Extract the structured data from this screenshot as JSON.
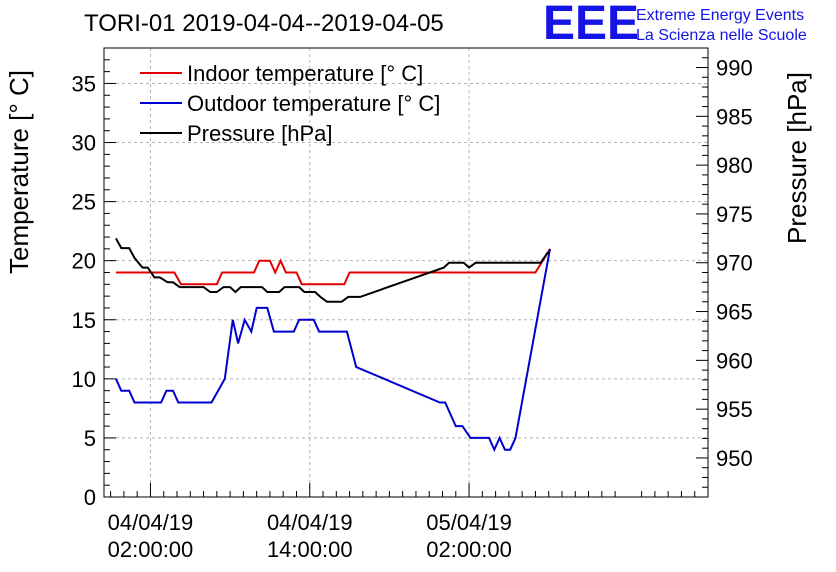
{
  "chart_data": {
    "type": "line",
    "title": "TORI-01 2019-04-04--2019-04-05",
    "branding": {
      "logo": "EEE",
      "line1": "Extreme Energy Events",
      "line2": "La Scienza nelle Scuole",
      "color": "#1414e6"
    },
    "ylabel_left": "Temperature [° C]",
    "ylabel_right": "Pressure [hPa]",
    "ylim_left": [
      0,
      38
    ],
    "ylim_right": [
      946,
      992
    ],
    "x_range_hours": [
      -3.5,
      42
    ],
    "yticks_left": [
      "0",
      "5",
      "10",
      "15",
      "20",
      "25",
      "30",
      "35"
    ],
    "yticks_right": [
      "950",
      "955",
      "960",
      "965",
      "970",
      "975",
      "980",
      "985",
      "990"
    ],
    "xticks": [
      {
        "hour": 0,
        "date": "04/04/19",
        "time": "02:00:00"
      },
      {
        "hour": 12,
        "date": "04/04/19",
        "time": "14:00:00"
      },
      {
        "hour": 24,
        "date": "05/04/19",
        "time": "02:00:00"
      }
    ],
    "legend_position": "top-left",
    "grid": true,
    "series": [
      {
        "name": "Indoor temperature [° C]",
        "axis": "left",
        "color": "#e00000",
        "x": [
          -2.6,
          1.8,
          2.3,
          5.0,
          5.4,
          7.8,
          8.2,
          9.0,
          9.4,
          9.8,
          10.2,
          11.0,
          11.4,
          14.6,
          15.0,
          29.0,
          30.1
        ],
        "y": [
          19,
          19,
          18,
          18,
          19,
          19,
          20,
          20,
          19,
          20,
          19,
          19,
          18,
          18,
          19,
          19,
          21
        ]
      },
      {
        "name": "Outdoor temperature [° C]",
        "axis": "left",
        "color": "#0000d0",
        "x": [
          -2.6,
          -2.2,
          -1.6,
          -1.2,
          0.8,
          1.2,
          1.7,
          2.1,
          4.6,
          5.6,
          6.2,
          6.6,
          7.1,
          7.6,
          8.0,
          8.8,
          9.3,
          10.8,
          11.2,
          12.3,
          12.7,
          14.8,
          15.5,
          21.8,
          22.2,
          23.0,
          23.5,
          24.1,
          25.5,
          25.9,
          26.3,
          26.7,
          27.1,
          27.5,
          30.1
        ],
        "y": [
          10,
          9,
          9,
          8,
          8,
          9,
          9,
          8,
          8,
          10,
          15,
          13,
          15,
          14,
          16,
          16,
          14,
          14,
          15,
          15,
          14,
          14,
          11,
          8,
          8,
          6,
          6,
          5,
          5,
          4,
          5,
          4,
          4,
          5,
          21
        ]
      },
      {
        "name": "Pressure [hPa]",
        "axis": "right",
        "color": "#000000",
        "x": [
          -2.6,
          -2.2,
          -1.6,
          -1.2,
          -0.6,
          -0.2,
          0.3,
          0.7,
          1.3,
          1.7,
          2.2,
          4.0,
          4.5,
          5.0,
          5.5,
          6.0,
          6.4,
          6.8,
          8.4,
          8.8,
          9.7,
          10.1,
          11.2,
          11.6,
          12.4,
          12.8,
          13.3,
          14.4,
          14.9,
          15.8,
          22.1,
          22.5,
          23.6,
          24.0,
          24.5,
          29.4,
          29.9,
          30.1
        ],
        "y": [
          972.5,
          971.5,
          971.5,
          970.5,
          969.5,
          969.5,
          968.5,
          968.5,
          968.0,
          968.0,
          967.5,
          967.5,
          967.0,
          967.0,
          967.5,
          967.5,
          967.0,
          967.5,
          967.5,
          967.0,
          967.0,
          967.5,
          967.5,
          967.0,
          967.0,
          966.5,
          966.0,
          966.0,
          966.5,
          966.5,
          969.5,
          970.0,
          970.0,
          969.5,
          970.0,
          970.0,
          971.0,
          971.0
        ]
      }
    ]
  }
}
